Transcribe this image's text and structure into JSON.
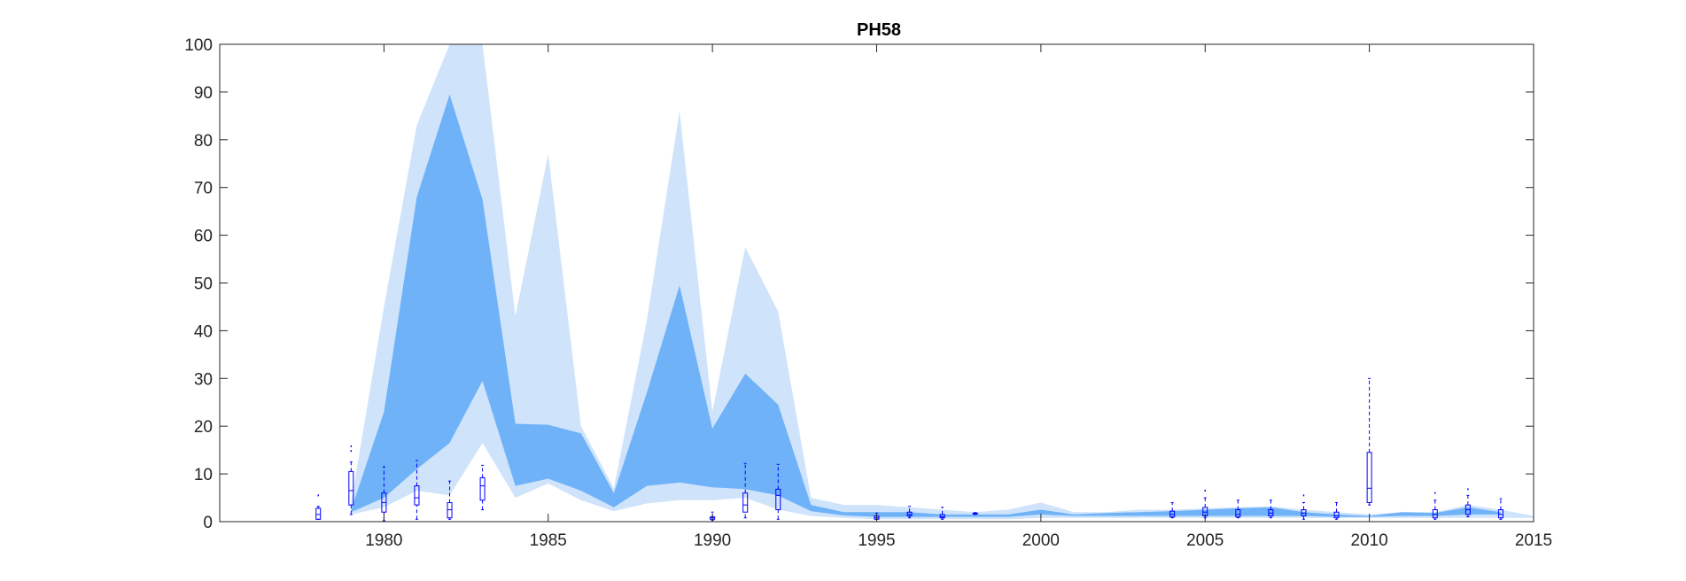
{
  "chart_data": {
    "type": "area",
    "title": "PH58",
    "xlabel": "",
    "ylabel": "",
    "xlim": [
      1975,
      2015
    ],
    "ylim": [
      0,
      100
    ],
    "x_ticks": [
      1980,
      1985,
      1990,
      1995,
      2000,
      2005,
      2010,
      2015
    ],
    "y_ticks": [
      0,
      10,
      20,
      30,
      40,
      50,
      60,
      70,
      80,
      90,
      100
    ],
    "grid": false,
    "colors": {
      "outer_band": "#cfe3fb",
      "inner_band": "#6fb2f8",
      "boxplot": "#0000ff",
      "axes": "#262626"
    },
    "bands": [
      {
        "role": "outer",
        "x": [
          1979,
          1980,
          1981,
          1982,
          1983,
          1984,
          1985,
          1986,
          1987,
          1988,
          1989,
          1990,
          1991,
          1992,
          1993,
          1994,
          1995,
          1996,
          1997,
          1998,
          1999,
          2000,
          2001,
          2002,
          2003,
          2004,
          2005,
          2006,
          2007,
          2008,
          2009,
          2010,
          2011,
          2012,
          2013,
          2014,
          2015
        ],
        "lower": [
          1.5,
          3,
          6.5,
          5.5,
          16.5,
          5,
          8,
          4.5,
          2.2,
          3.8,
          4.5,
          4.5,
          5,
          2.5,
          1.2,
          0.8,
          0.5,
          0.5,
          0.5,
          0.5,
          0.5,
          0.8,
          0.8,
          0.8,
          0.8,
          0.8,
          0.8,
          0.8,
          0.8,
          0.8,
          0.8,
          0.8,
          0.8,
          0.8,
          0.8,
          0.8,
          0.8
        ],
        "upper": [
          4,
          45,
          83,
          100,
          100,
          43,
          77,
          20,
          7,
          42,
          86,
          23,
          57.5,
          44,
          5,
          3.5,
          3.5,
          3,
          2.5,
          2,
          2.5,
          4,
          2,
          2,
          2.5,
          2.5,
          2.8,
          3,
          3.2,
          2.5,
          2,
          1.5,
          2,
          2,
          3.5,
          2.5,
          1.2
        ]
      },
      {
        "role": "inner",
        "x": [
          1979,
          1980,
          1981,
          1982,
          1983,
          1984,
          1985,
          1986,
          1987,
          1988,
          1989,
          1990,
          1991,
          1992,
          1993,
          1994,
          1995,
          1996,
          1997,
          1998,
          1999,
          2000,
          2001,
          2002,
          2003,
          2004,
          2005,
          2006,
          2007,
          2008,
          2009,
          2010,
          2011,
          2012,
          2013,
          2014
        ],
        "lower": [
          2,
          5,
          11,
          16.5,
          29.5,
          7.5,
          9,
          6.5,
          3,
          7.5,
          8.2,
          7.2,
          6.8,
          5.5,
          2.2,
          1.3,
          1,
          1,
          1,
          1,
          1,
          1.5,
          1.2,
          1.2,
          1.2,
          1.2,
          1.2,
          1.2,
          1.2,
          1.2,
          1,
          1,
          1.2,
          1.2,
          1.5,
          1.5
        ],
        "upper": [
          2.5,
          23,
          68,
          89.5,
          67.5,
          20.5,
          20.3,
          18.5,
          6,
          27,
          49.5,
          19.5,
          31,
          24.5,
          3.5,
          2,
          2,
          2,
          1.5,
          1.5,
          1.5,
          2.5,
          1.5,
          1.8,
          2,
          2.2,
          2.5,
          2.8,
          3,
          2,
          1.5,
          1.2,
          2,
          1.8,
          3,
          2
        ]
      }
    ],
    "boxplots": [
      {
        "x": 1978,
        "min": 0.5,
        "q1": 0.5,
        "median": 1.5,
        "q3": 2.8,
        "max": 3.2,
        "outliers": [
          5.5
        ]
      },
      {
        "x": 1979,
        "min": 1.5,
        "q1": 3.5,
        "median": 6.5,
        "q3": 10.5,
        "max": 12.5,
        "outliers": [
          14.8,
          15.8
        ]
      },
      {
        "x": 1980,
        "min": 0.2,
        "q1": 2,
        "median": 4,
        "q3": 6,
        "max": 11.5,
        "outliers": []
      },
      {
        "x": 1981,
        "min": 0.5,
        "q1": 3.5,
        "median": 5,
        "q3": 7.5,
        "max": 12.8,
        "outliers": []
      },
      {
        "x": 1982,
        "min": 0.5,
        "q1": 0.8,
        "median": 2.5,
        "q3": 4,
        "max": 8.5,
        "outliers": []
      },
      {
        "x": 1983,
        "min": 2.5,
        "q1": 4.5,
        "median": 7.5,
        "q3": 9.2,
        "max": 11.8,
        "outliers": []
      },
      {
        "x": 1990,
        "min": 0.3,
        "q1": 0.5,
        "median": 0.8,
        "q3": 1,
        "max": 2,
        "outliers": []
      },
      {
        "x": 1991,
        "min": 0.8,
        "q1": 2,
        "median": 3.5,
        "q3": 6,
        "max": 12.2,
        "outliers": []
      },
      {
        "x": 1992,
        "min": 0.5,
        "q1": 2.5,
        "median": 5.5,
        "q3": 6.8,
        "max": 12,
        "outliers": []
      },
      {
        "x": 1995,
        "min": 0.5,
        "q1": 0.5,
        "median": 0.8,
        "q3": 1.2,
        "max": 1.8,
        "outliers": []
      },
      {
        "x": 1996,
        "min": 0.8,
        "q1": 1.2,
        "median": 1.5,
        "q3": 2,
        "max": 3.2,
        "outliers": []
      },
      {
        "x": 1997,
        "min": 0.5,
        "q1": 0.8,
        "median": 1,
        "q3": 1.5,
        "max": 3,
        "outliers": []
      },
      {
        "x": 1998,
        "min": 1.5,
        "q1": 1.6,
        "median": 1.7,
        "q3": 1.8,
        "max": 1.9,
        "outliers": []
      },
      {
        "x": 2004,
        "min": 0.8,
        "q1": 1,
        "median": 1.5,
        "q3": 2.2,
        "max": 4,
        "outliers": []
      },
      {
        "x": 2005,
        "min": 0.8,
        "q1": 1.2,
        "median": 2,
        "q3": 3,
        "max": 5,
        "outliers": [
          6.5
        ]
      },
      {
        "x": 2006,
        "min": 0.8,
        "q1": 1,
        "median": 1.5,
        "q3": 2.5,
        "max": 4.5,
        "outliers": []
      },
      {
        "x": 2007,
        "min": 0.8,
        "q1": 1.2,
        "median": 1.8,
        "q3": 2.5,
        "max": 4.5,
        "outliers": []
      },
      {
        "x": 2008,
        "min": 0.5,
        "q1": 1.2,
        "median": 1.8,
        "q3": 2.5,
        "max": 4,
        "outliers": [
          5.5
        ]
      },
      {
        "x": 2009,
        "min": 0.5,
        "q1": 0.8,
        "median": 1.2,
        "q3": 2,
        "max": 4,
        "outliers": []
      },
      {
        "x": 2010,
        "min": 3.5,
        "q1": 4,
        "median": 7,
        "q3": 14.5,
        "max": 30,
        "outliers": []
      },
      {
        "x": 2012,
        "min": 0.5,
        "q1": 0.8,
        "median": 1.5,
        "q3": 2.5,
        "max": 4.5,
        "outliers": [
          6
        ]
      },
      {
        "x": 2013,
        "min": 1,
        "q1": 1.5,
        "median": 2.5,
        "q3": 3.5,
        "max": 5.5,
        "outliers": [
          6.8
        ]
      },
      {
        "x": 2014,
        "min": 0.5,
        "q1": 0.8,
        "median": 1.5,
        "q3": 2.5,
        "max": 4.8,
        "outliers": []
      }
    ]
  }
}
